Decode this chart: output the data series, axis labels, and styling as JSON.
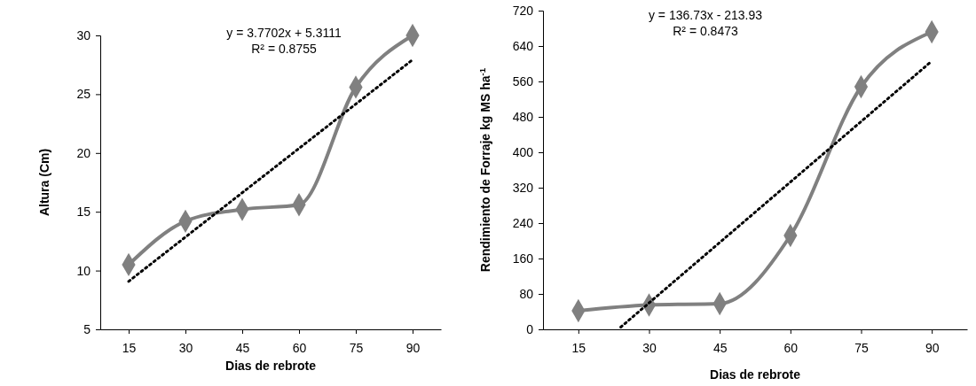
{
  "chart_data": [
    {
      "type": "line",
      "xlabel": "Dias de rebrote",
      "ylabel": "Altura (Cm)",
      "annotations": [
        "y = 3.7702x + 5.3111",
        "R² = 0.8755"
      ],
      "xlim": [
        7.5,
        97.5
      ],
      "xticks": [
        15,
        30,
        45,
        60,
        75,
        90
      ],
      "ylim": [
        5,
        30
      ],
      "yticks": [
        5,
        10,
        15,
        20,
        25,
        30
      ],
      "grid": false,
      "series": [
        {
          "type": "line",
          "color": "#808080",
          "marker": "diamond",
          "line_style": "solid",
          "x": [
            15,
            30,
            45,
            60,
            75,
            90
          ],
          "values": [
            10.5,
            14.2,
            15.2,
            15.6,
            25.6,
            30.0
          ]
        },
        {
          "type": "line",
          "color": "#000000",
          "marker": "none",
          "line_style": "dotted",
          "x": [
            15,
            90
          ],
          "values": [
            9.08,
            27.93
          ]
        }
      ]
    },
    {
      "type": "line",
      "xlabel": "Dias de rebrote",
      "ylabel": "Rendimiento de Forraje kg MS ha$^{-1}$",
      "annotations": [
        "y = 136.73x - 213.93",
        "R² = 0.8473"
      ],
      "xlim": [
        7.5,
        97.5
      ],
      "xticks": [
        15,
        30,
        45,
        60,
        75,
        90
      ],
      "ylim": [
        0,
        720
      ],
      "yticks": [
        0,
        80,
        160,
        240,
        320,
        400,
        480,
        560,
        640,
        720
      ],
      "grid": false,
      "series": [
        {
          "type": "line",
          "color": "#808080",
          "marker": "diamond",
          "line_style": "solid",
          "x": [
            15,
            30,
            45,
            60,
            75,
            90
          ],
          "values": [
            42,
            55,
            58,
            212,
            548,
            672
          ]
        },
        {
          "type": "line",
          "color": "#000000",
          "marker": "none",
          "line_style": "dotted",
          "x": [
            24,
            90
          ],
          "values": [
            5,
            606
          ]
        }
      ]
    }
  ]
}
